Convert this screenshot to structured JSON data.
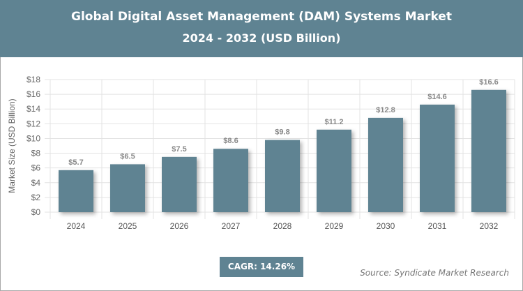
{
  "header": {
    "title": "Global Digital Asset Management (DAM) Systems Market",
    "subtitle": "2024 - 2032 (USD Billion)"
  },
  "chart_data": {
    "type": "bar",
    "title": "Global Digital Asset Management (DAM) Systems Market",
    "subtitle": "2024 - 2032 (USD Billion)",
    "categories": [
      "2024",
      "2025",
      "2026",
      "2027",
      "2028",
      "2029",
      "2030",
      "2031",
      "2032"
    ],
    "values": [
      5.7,
      6.5,
      7.5,
      8.6,
      9.8,
      11.2,
      12.8,
      14.6,
      16.6
    ],
    "data_labels": [
      "$5.7",
      "$6.5",
      "$7.5",
      "$8.6",
      "$9.8",
      "$11.2",
      "$12.8",
      "$14.6",
      "$16.6"
    ],
    "ylabel": "Market Size (USD Billion)",
    "xlabel": "",
    "ylim": [
      0,
      18
    ],
    "yticks": [
      "$0",
      "$2",
      "$4",
      "$6",
      "$8",
      "$10",
      "$12",
      "$14",
      "$16",
      "$18"
    ],
    "grid": true,
    "bar_color": "#5f8392"
  },
  "footer": {
    "cagr": "CAGR: 14.26%",
    "source": "Source: Syndicate Market Research"
  }
}
